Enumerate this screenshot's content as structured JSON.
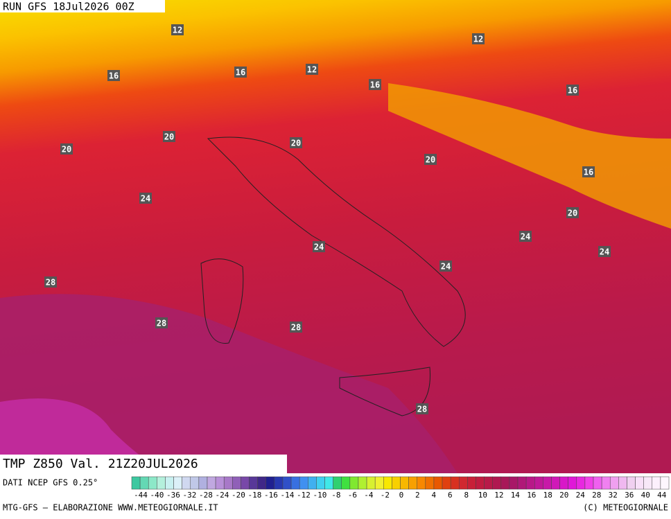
{
  "header": {
    "run": "RUN GFS 18Jul2026 00Z"
  },
  "map": {
    "contour_labels": [
      12,
      12,
      16,
      16,
      12,
      16,
      16,
      20,
      20,
      20,
      20,
      16,
      20,
      24,
      24,
      24,
      24,
      24,
      28,
      28,
      28,
      28
    ]
  },
  "footer": {
    "field": "TMP Z850 Val. 21Z20JUL2026",
    "source": "DATI NCEP GFS 0.25°",
    "credit": "MTG-GFS — ELABORAZIONE WWW.METEOGIORNALE.IT",
    "copyright": "(C) METEOGIORNALE"
  },
  "legend": {
    "labels": [
      -44,
      -40,
      -36,
      -32,
      -28,
      -24,
      -20,
      -18,
      -16,
      -14,
      -12,
      -10,
      -8,
      -6,
      -4,
      -2,
      0,
      2,
      4,
      6,
      8,
      10,
      12,
      14,
      16,
      18,
      20,
      24,
      28,
      32,
      36,
      40,
      44
    ]
  }
}
